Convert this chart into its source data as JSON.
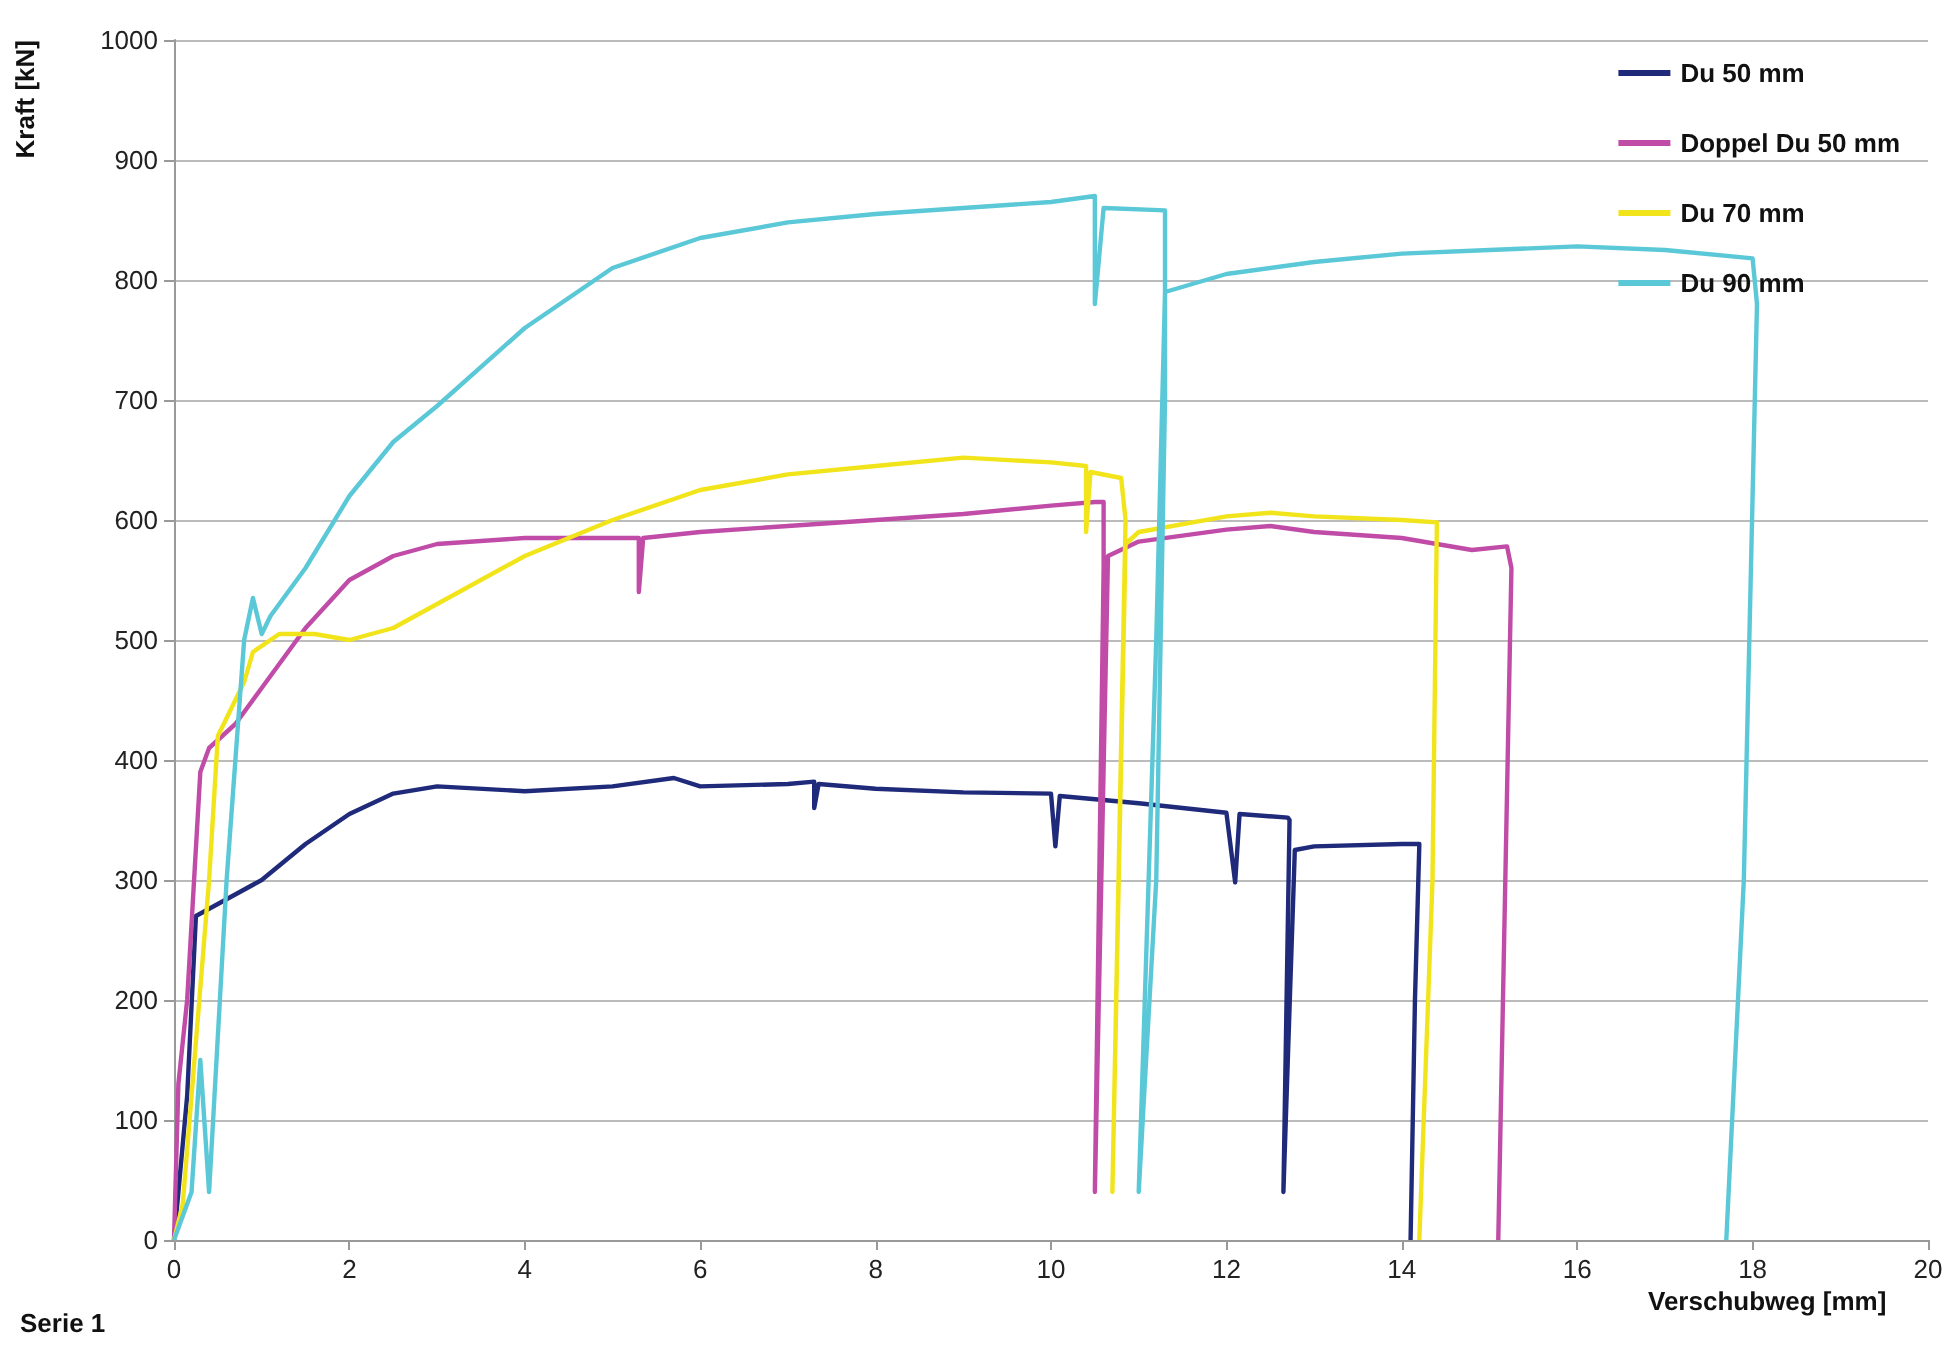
{
  "chart_data": {
    "type": "line",
    "xlabel": "Verschubweg [mm]",
    "ylabel": "Kraft [kN]",
    "annotations": [
      "Serie 1"
    ],
    "xlim": [
      0,
      20
    ],
    "xticks": [
      0,
      2,
      4,
      6,
      8,
      10,
      12,
      14,
      16,
      18,
      20
    ],
    "ylim": [
      0,
      1000
    ],
    "yticks": [
      0,
      100,
      200,
      300,
      400,
      500,
      600,
      700,
      800,
      900,
      1000
    ],
    "grid": "y",
    "legend": "top right",
    "marker": "none",
    "line_style": "solid",
    "series": [
      {
        "name": "Du 50 mm",
        "color": "#1f2a7a",
        "x": [
          0,
          0.15,
          0.25,
          0.5,
          1,
          1.5,
          2,
          2.5,
          3,
          4,
          5,
          5.7,
          6,
          7,
          7.3,
          7.3,
          7.35,
          8,
          9,
          10,
          10.05,
          10.1,
          11,
          12,
          12.1,
          12.15,
          12.7,
          12.72,
          12.65,
          12.78,
          13,
          14,
          14.2,
          14.15,
          14.1
        ],
        "values": [
          0,
          120,
          270,
          280,
          300,
          330,
          355,
          372,
          378,
          374,
          378,
          385,
          378,
          380,
          382,
          360,
          380,
          376,
          373,
          372,
          328,
          370,
          364,
          356,
          298,
          355,
          352,
          350,
          40,
          325,
          328,
          330,
          330,
          200,
          0
        ]
      },
      {
        "name": "Doppel Du 50 mm",
        "color": "#c04ca8",
        "x": [
          0,
          0.05,
          0.15,
          0.3,
          0.4,
          0.7,
          1,
          1.5,
          2,
          2.5,
          3,
          4,
          5,
          5.3,
          5.3,
          5.35,
          6,
          7,
          8,
          9,
          10,
          10.5,
          10.6,
          10.6,
          10.5,
          10.65,
          11,
          12,
          12.5,
          13,
          14,
          14.8,
          15.2,
          15.25,
          15.1
        ],
        "values": [
          0,
          130,
          200,
          390,
          410,
          430,
          460,
          510,
          550,
          570,
          580,
          585,
          585,
          585,
          540,
          585,
          590,
          595,
          600,
          605,
          612,
          615,
          615,
          560,
          40,
          570,
          582,
          592,
          595,
          590,
          585,
          575,
          578,
          560,
          0
        ]
      },
      {
        "name": "Du 70 mm",
        "color": "#f2e41a",
        "x": [
          0,
          0.1,
          0.2,
          0.4,
          0.5,
          0.8,
          0.9,
          1.2,
          1.6,
          2,
          2.5,
          3,
          4,
          5,
          6,
          7,
          8,
          9,
          10,
          10.4,
          10.4,
          10.45,
          10.8,
          10.85,
          10.7,
          10.85,
          11,
          12,
          12.5,
          13,
          14,
          14.4,
          14.35,
          14.2
        ],
        "values": [
          0,
          30,
          120,
          300,
          420,
          465,
          490,
          505,
          505,
          500,
          510,
          530,
          570,
          600,
          625,
          638,
          645,
          652,
          648,
          645,
          590,
          640,
          635,
          600,
          40,
          580,
          590,
          603,
          606,
          603,
          600,
          598,
          300,
          0
        ]
      },
      {
        "name": "Du 90 mm",
        "color": "#5bc8d8",
        "x": [
          0,
          0.2,
          0.3,
          0.4,
          0.6,
          0.8,
          0.9,
          1,
          1.1,
          1.5,
          2,
          2.5,
          3,
          4,
          5,
          6,
          7,
          8,
          9,
          10,
          10.5,
          10.5,
          10.6,
          11.3,
          11.3,
          11.2,
          11,
          11.2,
          11.3,
          12,
          13,
          14,
          15,
          16,
          17,
          18,
          18.05,
          17.9,
          17.7
        ],
        "values": [
          0,
          40,
          150,
          40,
          300,
          500,
          535,
          505,
          520,
          560,
          620,
          665,
          695,
          760,
          810,
          835,
          848,
          855,
          860,
          865,
          870,
          780,
          860,
          858,
          700,
          300,
          40,
          500,
          790,
          805,
          815,
          822,
          825,
          828,
          825,
          818,
          780,
          300,
          0
        ]
      }
    ]
  }
}
